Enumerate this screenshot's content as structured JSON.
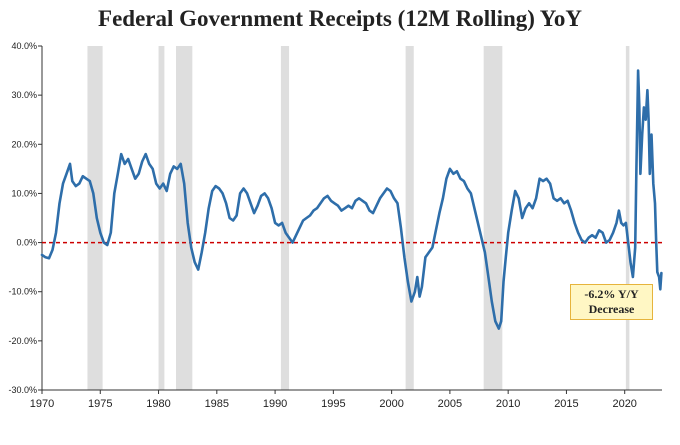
{
  "chart_data": {
    "type": "line",
    "title": "Federal Government Receipts (12M Rolling) YoY",
    "xlabel": "",
    "ylabel": "",
    "xlim": [
      1970,
      2023.2
    ],
    "ylim": [
      -30,
      40
    ],
    "y_ticks": [
      -30,
      -20,
      -10,
      0,
      10,
      20,
      30,
      40
    ],
    "y_tick_labels": [
      "-30.0%",
      "-20.0%",
      "-10.0%",
      "0.0%",
      "10.0%",
      "20.0%",
      "30.0%",
      "40.0%"
    ],
    "x_ticks": [
      1970,
      1975,
      1980,
      1985,
      1990,
      1995,
      2000,
      2005,
      2010,
      2015,
      2020
    ],
    "x_tick_labels": [
      "1970",
      "1975",
      "1980",
      "1985",
      "1990",
      "1995",
      "2000",
      "2005",
      "2010",
      "2015",
      "2020"
    ],
    "grid": false,
    "reference_line": {
      "y": 0,
      "style": "dashed",
      "color": "#cc0000"
    },
    "recessions": [
      [
        1973.9,
        1975.2
      ],
      [
        1980.0,
        1980.5
      ],
      [
        1981.5,
        1982.9
      ],
      [
        1990.5,
        1991.2
      ],
      [
        2001.2,
        2001.9
      ],
      [
        2007.9,
        2009.5
      ],
      [
        2020.1,
        2020.4
      ]
    ],
    "annotation": {
      "line1": "-6.2% Y/Y",
      "line2": "Decrease"
    },
    "series": [
      {
        "color": "#2e6eaa",
        "points": [
          [
            1970.0,
            -2.5
          ],
          [
            1970.3,
            -3.0
          ],
          [
            1970.6,
            -3.2
          ],
          [
            1970.9,
            -1.5
          ],
          [
            1971.2,
            2.0
          ],
          [
            1971.5,
            8.0
          ],
          [
            1971.8,
            12.0
          ],
          [
            1972.1,
            14.0
          ],
          [
            1972.4,
            16.0
          ],
          [
            1972.6,
            12.5
          ],
          [
            1972.9,
            11.5
          ],
          [
            1973.2,
            12.0
          ],
          [
            1973.5,
            13.5
          ],
          [
            1973.8,
            13.0
          ],
          [
            1974.1,
            12.5
          ],
          [
            1974.4,
            10.0
          ],
          [
            1974.7,
            5.0
          ],
          [
            1975.0,
            2.0
          ],
          [
            1975.3,
            0.0
          ],
          [
            1975.6,
            -0.5
          ],
          [
            1975.9,
            2.0
          ],
          [
            1976.2,
            10.0
          ],
          [
            1976.5,
            14.0
          ],
          [
            1976.8,
            18.0
          ],
          [
            1977.1,
            16.0
          ],
          [
            1977.4,
            17.0
          ],
          [
            1977.7,
            15.0
          ],
          [
            1978.0,
            13.0
          ],
          [
            1978.3,
            14.0
          ],
          [
            1978.6,
            16.5
          ],
          [
            1978.9,
            18.0
          ],
          [
            1979.2,
            16.0
          ],
          [
            1979.5,
            15.0
          ],
          [
            1979.8,
            12.0
          ],
          [
            1980.1,
            11.0
          ],
          [
            1980.4,
            12.0
          ],
          [
            1980.7,
            10.5
          ],
          [
            1981.0,
            14.0
          ],
          [
            1981.3,
            15.5
          ],
          [
            1981.6,
            15.0
          ],
          [
            1981.9,
            16.0
          ],
          [
            1982.2,
            12.0
          ],
          [
            1982.5,
            4.0
          ],
          [
            1982.8,
            -1.0
          ],
          [
            1983.1,
            -4.0
          ],
          [
            1983.4,
            -5.5
          ],
          [
            1983.7,
            -2.0
          ],
          [
            1984.0,
            2.0
          ],
          [
            1984.3,
            7.0
          ],
          [
            1984.6,
            10.5
          ],
          [
            1984.9,
            11.5
          ],
          [
            1985.2,
            11.0
          ],
          [
            1985.5,
            10.0
          ],
          [
            1985.8,
            8.0
          ],
          [
            1986.1,
            5.0
          ],
          [
            1986.4,
            4.5
          ],
          [
            1986.7,
            5.5
          ],
          [
            1987.0,
            10.0
          ],
          [
            1987.3,
            11.0
          ],
          [
            1987.6,
            10.0
          ],
          [
            1987.9,
            8.0
          ],
          [
            1988.2,
            6.0
          ],
          [
            1988.5,
            7.5
          ],
          [
            1988.8,
            9.5
          ],
          [
            1989.1,
            10.0
          ],
          [
            1989.4,
            9.0
          ],
          [
            1989.7,
            7.0
          ],
          [
            1990.0,
            4.0
          ],
          [
            1990.3,
            3.5
          ],
          [
            1990.6,
            4.0
          ],
          [
            1990.9,
            2.0
          ],
          [
            1991.2,
            1.0
          ],
          [
            1991.5,
            0.0
          ],
          [
            1991.8,
            1.5
          ],
          [
            1992.1,
            3.0
          ],
          [
            1992.4,
            4.5
          ],
          [
            1992.7,
            5.0
          ],
          [
            1993.0,
            5.5
          ],
          [
            1993.3,
            6.5
          ],
          [
            1993.6,
            7.0
          ],
          [
            1993.9,
            8.0
          ],
          [
            1994.2,
            9.0
          ],
          [
            1994.5,
            9.5
          ],
          [
            1994.8,
            8.5
          ],
          [
            1995.1,
            8.0
          ],
          [
            1995.4,
            7.5
          ],
          [
            1995.7,
            6.5
          ],
          [
            1996.0,
            7.0
          ],
          [
            1996.3,
            7.5
          ],
          [
            1996.6,
            7.0
          ],
          [
            1996.9,
            8.5
          ],
          [
            1997.2,
            9.0
          ],
          [
            1997.5,
            8.5
          ],
          [
            1997.8,
            8.0
          ],
          [
            1998.1,
            6.5
          ],
          [
            1998.4,
            6.0
          ],
          [
            1998.7,
            7.5
          ],
          [
            1999.0,
            9.0
          ],
          [
            1999.3,
            10.0
          ],
          [
            1999.6,
            11.0
          ],
          [
            1999.9,
            10.5
          ],
          [
            2000.2,
            9.0
          ],
          [
            2000.5,
            8.0
          ],
          [
            2000.8,
            3.0
          ],
          [
            2001.1,
            -3.0
          ],
          [
            2001.4,
            -8.0
          ],
          [
            2001.7,
            -12.0
          ],
          [
            2002.0,
            -10.0
          ],
          [
            2002.2,
            -7.0
          ],
          [
            2002.4,
            -11.0
          ],
          [
            2002.6,
            -9.0
          ],
          [
            2002.9,
            -3.0
          ],
          [
            2003.2,
            -2.0
          ],
          [
            2003.5,
            -1.0
          ],
          [
            2003.8,
            2.5
          ],
          [
            2004.1,
            6.0
          ],
          [
            2004.4,
            9.0
          ],
          [
            2004.7,
            13.0
          ],
          [
            2005.0,
            15.0
          ],
          [
            2005.3,
            14.0
          ],
          [
            2005.6,
            14.5
          ],
          [
            2005.9,
            13.0
          ],
          [
            2006.2,
            12.5
          ],
          [
            2006.5,
            11.0
          ],
          [
            2006.8,
            10.0
          ],
          [
            2007.1,
            7.0
          ],
          [
            2007.4,
            4.0
          ],
          [
            2007.7,
            1.0
          ],
          [
            2008.0,
            -2.0
          ],
          [
            2008.3,
            -7.0
          ],
          [
            2008.6,
            -12.0
          ],
          [
            2008.9,
            -16.0
          ],
          [
            2009.2,
            -17.5
          ],
          [
            2009.4,
            -16.0
          ],
          [
            2009.6,
            -8.0
          ],
          [
            2009.8,
            -3.0
          ],
          [
            2010.0,
            2.0
          ],
          [
            2010.3,
            6.5
          ],
          [
            2010.6,
            10.5
          ],
          [
            2010.9,
            9.0
          ],
          [
            2011.2,
            5.0
          ],
          [
            2011.5,
            7.0
          ],
          [
            2011.8,
            8.0
          ],
          [
            2012.1,
            7.0
          ],
          [
            2012.4,
            9.0
          ],
          [
            2012.7,
            13.0
          ],
          [
            2013.0,
            12.5
          ],
          [
            2013.3,
            13.0
          ],
          [
            2013.6,
            12.0
          ],
          [
            2013.9,
            9.0
          ],
          [
            2014.2,
            8.5
          ],
          [
            2014.5,
            9.0
          ],
          [
            2014.8,
            8.0
          ],
          [
            2015.1,
            8.5
          ],
          [
            2015.4,
            6.5
          ],
          [
            2015.7,
            4.0
          ],
          [
            2016.0,
            2.0
          ],
          [
            2016.3,
            0.5
          ],
          [
            2016.6,
            0.0
          ],
          [
            2016.9,
            1.0
          ],
          [
            2017.2,
            1.5
          ],
          [
            2017.5,
            1.0
          ],
          [
            2017.8,
            2.5
          ],
          [
            2018.1,
            2.0
          ],
          [
            2018.4,
            0.0
          ],
          [
            2018.7,
            0.5
          ],
          [
            2019.0,
            2.0
          ],
          [
            2019.3,
            4.0
          ],
          [
            2019.5,
            6.5
          ],
          [
            2019.7,
            4.0
          ],
          [
            2019.9,
            3.5
          ],
          [
            2020.1,
            4.0
          ],
          [
            2020.3,
            0.0
          ],
          [
            2020.5,
            -4.0
          ],
          [
            2020.7,
            -7.0
          ],
          [
            2020.9,
            -1.0
          ],
          [
            2021.0,
            15.0
          ],
          [
            2021.15,
            35.0
          ],
          [
            2021.25,
            28.0
          ],
          [
            2021.35,
            14.0
          ],
          [
            2021.5,
            22.0
          ],
          [
            2021.65,
            27.5
          ],
          [
            2021.8,
            25.0
          ],
          [
            2021.95,
            31.0
          ],
          [
            2022.05,
            25.0
          ],
          [
            2022.15,
            14.0
          ],
          [
            2022.3,
            22.0
          ],
          [
            2022.45,
            12.0
          ],
          [
            2022.6,
            8.0
          ],
          [
            2022.7,
            0.0
          ],
          [
            2022.8,
            -6.0
          ],
          [
            2022.95,
            -7.0
          ],
          [
            2023.05,
            -9.5
          ],
          [
            2023.15,
            -6.2
          ]
        ]
      }
    ]
  }
}
